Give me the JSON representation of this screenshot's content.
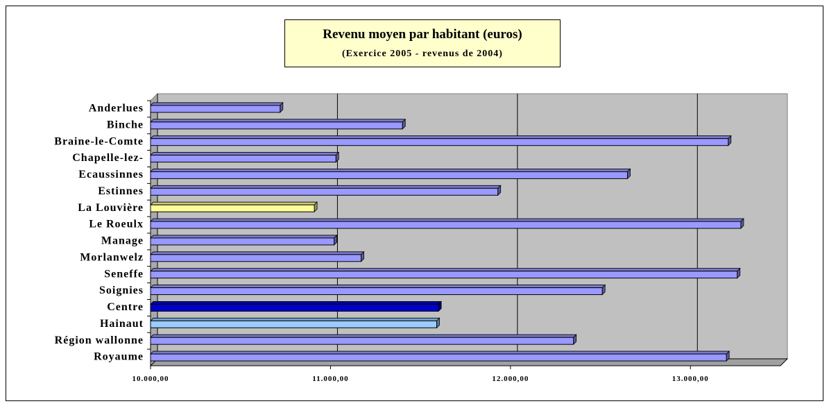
{
  "chart_data": {
    "type": "bar3d_horizontal",
    "title": "Revenu moyen par habitant (euros)",
    "subtitle": "(Exercice 2005 - revenus de 2004)",
    "categories": [
      "Anderlues",
      "Binche",
      "Braine-le-Comte",
      "Chapelle-lez-",
      "Ecaussinnes",
      "Estinnes",
      "La Louvière",
      "Le Roeulx",
      "Manage",
      "Morlanwelz",
      "Seneffe",
      "Soignies",
      "Centre",
      "Hainaut",
      "Région wallonne",
      "Royaume"
    ],
    "values": [
      10720,
      11400,
      13210,
      11030,
      12650,
      11930,
      10910,
      13280,
      11020,
      11170,
      13260,
      12510,
      11600,
      11590,
      12350,
      13200
    ],
    "colors": [
      "#9999ff",
      "#9999ff",
      "#9999ff",
      "#9999ff",
      "#9999ff",
      "#9999ff",
      "#ffff99",
      "#9999ff",
      "#9999ff",
      "#9999ff",
      "#9999ff",
      "#9999ff",
      "#0000cc",
      "#99ccff",
      "#9999ff",
      "#9999ff"
    ],
    "xlim": [
      10000,
      13500
    ],
    "xticks": [
      {
        "value": 10000,
        "label": "10.000,00"
      },
      {
        "value": 11000,
        "label": "11.000,00"
      },
      {
        "value": 12000,
        "label": "12.000,00"
      },
      {
        "value": 13000,
        "label": "13.000,00"
      }
    ],
    "grid": true
  }
}
